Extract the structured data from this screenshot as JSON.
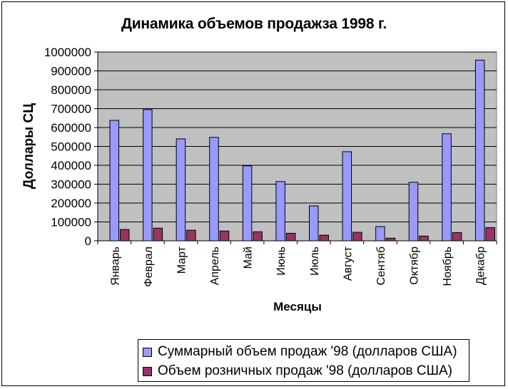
{
  "chart_data": {
    "type": "bar",
    "title": "Динамика объемов  продажза 1998 г.",
    "xlabel": "Месяцы",
    "ylabel": "Доллары СЦ",
    "ylim": [
      0,
      1000000
    ],
    "yticks": [
      "0",
      "100000",
      "200000",
      "300000",
      "400000",
      "500000",
      "600000",
      "700000",
      "800000",
      "900000",
      "1000000"
    ],
    "categories": [
      "Январь",
      "Феврал",
      "Март",
      "Апрель",
      "Май",
      "Июнь",
      "Июль",
      "Август",
      "Сентяб",
      "Октябр",
      "Ноябрь",
      "Декабр"
    ],
    "series": [
      {
        "name": "Суммарный объем продаж '98 (долларов США)",
        "color": "#9999ff",
        "values": [
          638000,
          695000,
          540000,
          548000,
          397000,
          314000,
          185000,
          472000,
          75000,
          310000,
          567000,
          957000
        ]
      },
      {
        "name": "Объем розничных продаж '98 (долларов США)",
        "color": "#993366",
        "values": [
          60000,
          67000,
          56000,
          52000,
          48000,
          40000,
          30000,
          45000,
          14000,
          25000,
          44000,
          70000
        ]
      }
    ],
    "plot_background": "#c0c0c0",
    "grid": true,
    "legend_position": "bottom-right"
  }
}
